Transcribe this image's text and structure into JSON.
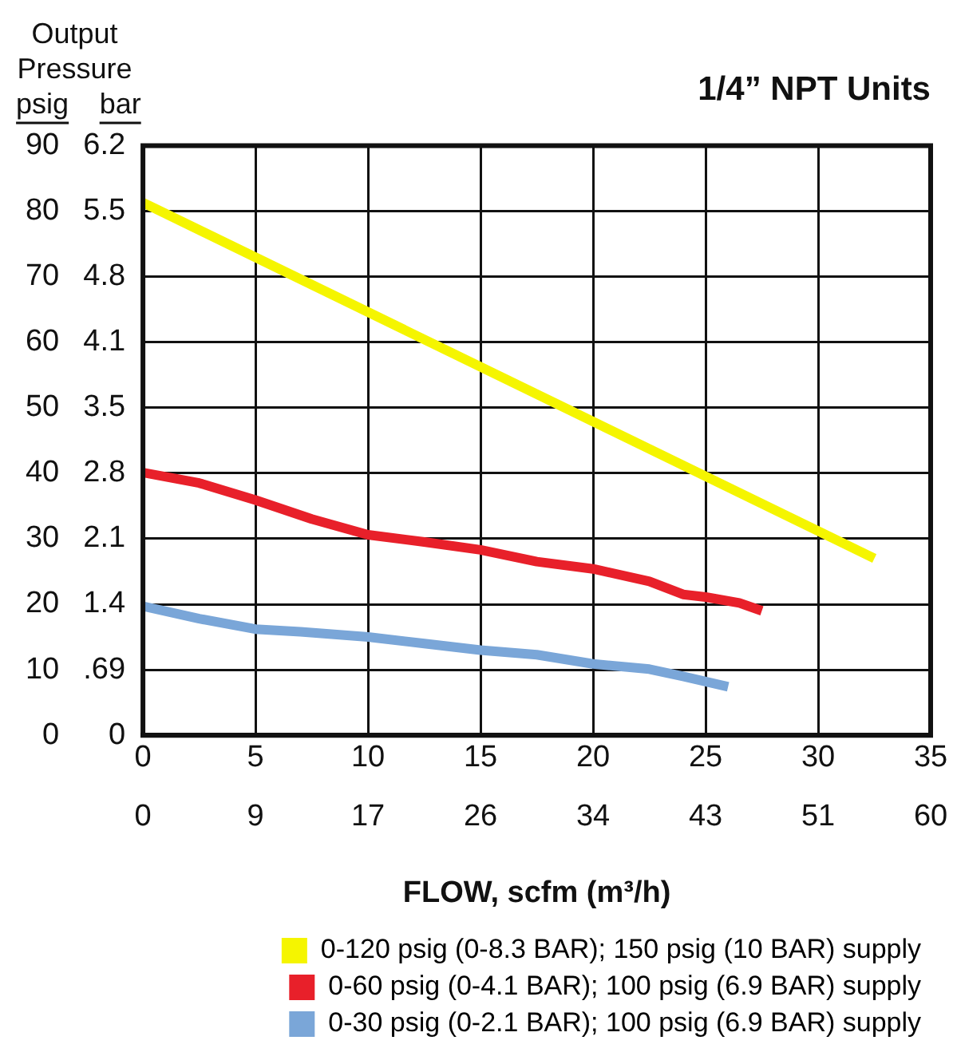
{
  "chart_data": {
    "type": "line",
    "title": "1/4” NPT Units",
    "xlabel": "FLOW, scfm (m³/h)",
    "ylabel": "psig",
    "y2label": "bar",
    "annotations": [
      "Output Pressure"
    ],
    "xlim": [
      0,
      35
    ],
    "xticks": [
      0,
      5,
      10,
      15,
      20,
      25,
      30,
      35
    ],
    "x2lim": [
      0,
      59.5
    ],
    "x2ticks": [
      0,
      {
        "value": 8.5,
        "label": "9"
      },
      17,
      {
        "value": 25.5,
        "label": "26"
      },
      34,
      {
        "value": 42.5,
        "label": "43"
      },
      51,
      {
        "value": 59.5,
        "label": "60"
      }
    ],
    "ylim": [
      0,
      90
    ],
    "yticks": [
      0,
      10,
      20,
      30,
      40,
      50,
      60,
      70,
      80,
      90
    ],
    "y2lim": [
      0,
      6.2
    ],
    "y2ticks": [
      0,
      {
        "value": 0.689,
        "label": ".69"
      },
      {
        "value": 1.378,
        "label": "1.4"
      },
      {
        "value": 2.067,
        "label": "2.1"
      },
      {
        "value": 2.756,
        "label": "2.8"
      },
      {
        "value": 3.45,
        "label": "3.5"
      },
      {
        "value": 4.133,
        "label": "4.1"
      },
      {
        "value": 4.822,
        "label": "4.8"
      },
      {
        "value": 5.511,
        "label": "5.5"
      },
      6.2
    ],
    "grid": true,
    "legend": "bottom",
    "marker": "none",
    "line_style": "solid",
    "series": [
      {
        "name": "0-120 psig (0-8.3 BAR); 150 psig (10 BAR) supply",
        "color": "#f5f500",
        "x": [
          0,
          32.5
        ],
        "values": [
          81.3,
          27
        ]
      },
      {
        "name": "0-60 psig (0-4.1 BAR); 100 psig (6.9 BAR) supply",
        "color": "#e8202a",
        "x": [
          0,
          2.5,
          5,
          7.5,
          10,
          12.5,
          15,
          17.5,
          20,
          22.5,
          24,
          25,
          26.5,
          27.5
        ],
        "values": [
          40.1,
          38.5,
          35.9,
          33,
          30.6,
          29.5,
          28.3,
          26.5,
          25.4,
          23.5,
          21.5,
          21.1,
          20.2,
          19
        ]
      },
      {
        "name": "0-30 psig (0-2.1 BAR); 100 psig (6.9 BAR) supply",
        "color": "#7aa6d8",
        "x": [
          0,
          2.5,
          5,
          7,
          10,
          12.5,
          15,
          17.5,
          20,
          22.5,
          24,
          26
        ],
        "values": [
          19.7,
          17.8,
          16.2,
          15.8,
          15,
          14,
          13,
          12.3,
          10.9,
          10.1,
          9,
          7.4
        ]
      }
    ]
  }
}
